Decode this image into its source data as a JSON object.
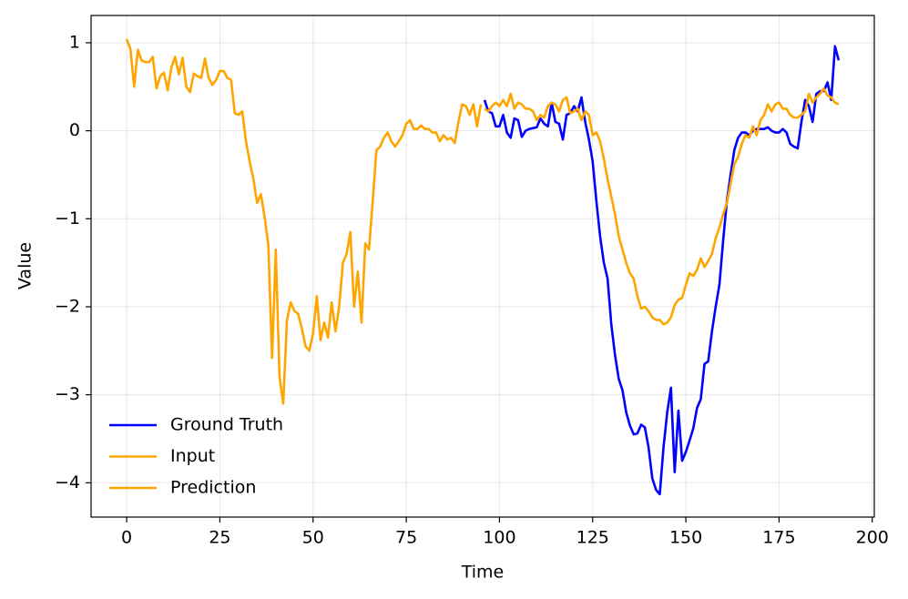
{
  "chart_data": {
    "type": "line",
    "x_label": "Time",
    "y_label": "Value",
    "xlim": [
      -9.55,
      200.55
    ],
    "ylim": [
      -4.39,
      1.31
    ],
    "xticks": [
      0,
      25,
      50,
      75,
      100,
      125,
      150,
      175,
      200
    ],
    "yticks": [
      {
        "value": -4,
        "label": "−4"
      },
      {
        "value": -3,
        "label": "−3"
      },
      {
        "value": -2,
        "label": "−2"
      },
      {
        "value": -1,
        "label": "−1"
      },
      0,
      1
    ],
    "grid": true,
    "legend": "lower left",
    "series": [
      {
        "name": "Ground Truth",
        "color": "#0000ff",
        "x": [
          96,
          97,
          98,
          99,
          100,
          101,
          102,
          103,
          104,
          105,
          106,
          107,
          108,
          109,
          110,
          111,
          112,
          113,
          114,
          115,
          116,
          117,
          118,
          119,
          120,
          121,
          122,
          123,
          124,
          125,
          126,
          127,
          128,
          129,
          130,
          131,
          132,
          133,
          134,
          135,
          136,
          137,
          138,
          139,
          140,
          141,
          142,
          143,
          144,
          145,
          146,
          147,
          148,
          149,
          150,
          151,
          152,
          153,
          154,
          155,
          156,
          157,
          158,
          159,
          160,
          161,
          162,
          163,
          164,
          165,
          166,
          167,
          168,
          169,
          170,
          171,
          172,
          173,
          174,
          175,
          176,
          177,
          178,
          179,
          180,
          181,
          182,
          183,
          184,
          185,
          186,
          187,
          188,
          189,
          190,
          191
        ],
        "values": [
          0.35,
          0.22,
          0.2,
          0.05,
          0.05,
          0.18,
          -0.02,
          -0.08,
          0.14,
          0.12,
          -0.07,
          0.0,
          0.02,
          0.03,
          0.04,
          0.14,
          0.08,
          0.05,
          0.32,
          0.1,
          0.08,
          -0.1,
          0.18,
          0.2,
          0.28,
          0.22,
          0.38,
          0.1,
          -0.1,
          -0.35,
          -0.8,
          -1.2,
          -1.5,
          -1.68,
          -2.2,
          -2.55,
          -2.82,
          -2.95,
          -3.2,
          -3.35,
          -3.45,
          -3.44,
          -3.34,
          -3.37,
          -3.6,
          -3.95,
          -4.08,
          -4.13,
          -3.6,
          -3.2,
          -2.92,
          -3.88,
          -3.18,
          -3.75,
          -3.65,
          -3.52,
          -3.38,
          -3.15,
          -3.05,
          -2.65,
          -2.62,
          -2.28,
          -2.0,
          -1.75,
          -1.25,
          -0.8,
          -0.5,
          -0.22,
          -0.08,
          -0.02,
          -0.02,
          -0.05,
          0.0,
          0.02,
          0.02,
          0.02,
          0.04,
          0.0,
          -0.02,
          -0.02,
          0.02,
          -0.02,
          -0.15,
          -0.18,
          -0.2,
          0.1,
          0.35,
          0.28,
          0.1,
          0.42,
          0.45,
          0.45,
          0.55,
          0.35,
          0.96,
          0.8
        ]
      },
      {
        "name": "Input",
        "color": "#ffa500",
        "x": [
          0,
          1,
          2,
          3,
          4,
          5,
          6,
          7,
          8,
          9,
          10,
          11,
          12,
          13,
          14,
          15,
          16,
          17,
          18,
          19,
          20,
          21,
          22,
          23,
          24,
          25,
          26,
          27,
          28,
          29,
          30,
          31,
          32,
          33,
          34,
          35,
          36,
          37,
          38,
          39,
          40,
          41,
          42,
          43,
          44,
          45,
          46,
          47,
          48,
          49,
          50,
          51,
          52,
          53,
          54,
          55,
          56,
          57,
          58,
          59,
          60,
          61,
          62,
          63,
          64,
          65,
          66,
          67,
          68,
          69,
          70,
          71,
          72,
          73,
          74,
          75,
          76,
          77,
          78,
          79,
          80,
          81,
          82,
          83,
          84,
          85,
          86,
          87,
          88,
          89,
          90,
          91,
          92,
          93,
          94,
          95
        ],
        "values": [
          1.04,
          0.93,
          0.5,
          0.92,
          0.8,
          0.78,
          0.78,
          0.84,
          0.48,
          0.62,
          0.66,
          0.46,
          0.72,
          0.84,
          0.64,
          0.83,
          0.5,
          0.44,
          0.65,
          0.62,
          0.6,
          0.82,
          0.6,
          0.52,
          0.58,
          0.68,
          0.68,
          0.6,
          0.58,
          0.2,
          0.18,
          0.22,
          -0.12,
          -0.35,
          -0.55,
          -0.82,
          -0.72,
          -0.98,
          -1.3,
          -2.58,
          -1.35,
          -2.8,
          -3.1,
          -2.15,
          -1.95,
          -2.05,
          -2.08,
          -2.25,
          -2.45,
          -2.5,
          -2.3,
          -1.88,
          -2.38,
          -2.18,
          -2.35,
          -1.95,
          -2.28,
          -2.0,
          -1.5,
          -1.4,
          -1.15,
          -2.0,
          -1.6,
          -2.18,
          -1.28,
          -1.35,
          -0.8,
          -0.22,
          -0.18,
          -0.08,
          -0.02,
          -0.12,
          -0.18,
          -0.12,
          -0.05,
          0.08,
          0.12,
          0.02,
          0.02,
          0.06,
          0.02,
          0.02,
          -0.02,
          -0.02,
          -0.12,
          -0.05,
          -0.1,
          -0.08,
          -0.14,
          0.1,
          0.3,
          0.28,
          0.18,
          0.3,
          0.05,
          0.3
        ]
      },
      {
        "name": "Prediction",
        "color": "#ffa500",
        "x": [
          96,
          97,
          98,
          99,
          100,
          101,
          102,
          103,
          104,
          105,
          106,
          107,
          108,
          109,
          110,
          111,
          112,
          113,
          114,
          115,
          116,
          117,
          118,
          119,
          120,
          121,
          122,
          123,
          124,
          125,
          126,
          127,
          128,
          129,
          130,
          131,
          132,
          133,
          134,
          135,
          136,
          137,
          138,
          139,
          140,
          141,
          142,
          143,
          144,
          145,
          146,
          147,
          148,
          149,
          150,
          151,
          152,
          153,
          154,
          155,
          156,
          157,
          158,
          159,
          160,
          161,
          162,
          163,
          164,
          165,
          166,
          167,
          168,
          169,
          170,
          171,
          172,
          173,
          174,
          175,
          176,
          177,
          178,
          179,
          180,
          181,
          182,
          183,
          184,
          185,
          186,
          187,
          188,
          189,
          190,
          191
        ],
        "values": [
          0.25,
          0.22,
          0.28,
          0.32,
          0.28,
          0.35,
          0.28,
          0.42,
          0.25,
          0.32,
          0.3,
          0.25,
          0.25,
          0.22,
          0.12,
          0.18,
          0.15,
          0.28,
          0.32,
          0.3,
          0.22,
          0.35,
          0.38,
          0.2,
          0.22,
          0.25,
          0.12,
          0.22,
          0.18,
          -0.05,
          -0.02,
          -0.12,
          -0.32,
          -0.55,
          -0.75,
          -0.95,
          -1.2,
          -1.35,
          -1.5,
          -1.62,
          -1.68,
          -1.88,
          -2.02,
          -2.0,
          -2.05,
          -2.12,
          -2.15,
          -2.15,
          -2.2,
          -2.18,
          -2.12,
          -1.98,
          -1.92,
          -1.9,
          -1.75,
          -1.62,
          -1.65,
          -1.58,
          -1.45,
          -1.55,
          -1.48,
          -1.4,
          -1.22,
          -1.1,
          -0.95,
          -0.82,
          -0.6,
          -0.38,
          -0.3,
          -0.15,
          -0.05,
          -0.08,
          0.05,
          -0.05,
          0.12,
          0.18,
          0.3,
          0.22,
          0.3,
          0.32,
          0.25,
          0.25,
          0.18,
          0.15,
          0.15,
          0.18,
          0.22,
          0.42,
          0.32,
          0.38,
          0.42,
          0.48,
          0.4,
          0.38,
          0.32,
          0.3
        ]
      }
    ]
  }
}
